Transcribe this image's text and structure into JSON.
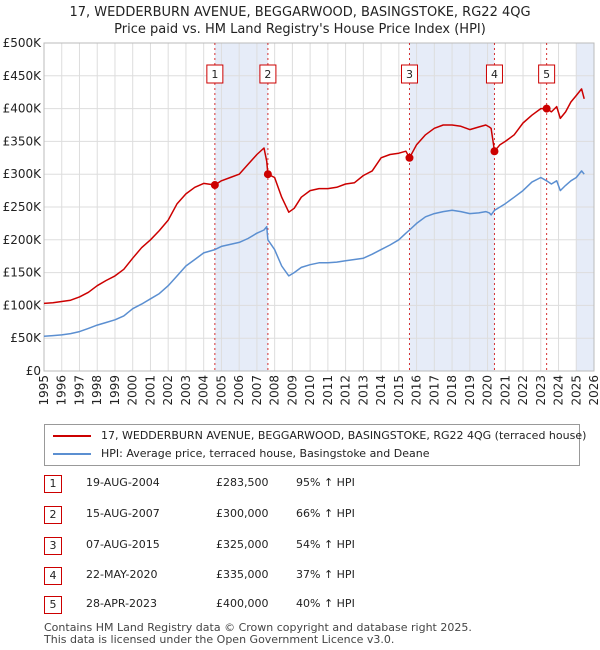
{
  "title_line1": "17, WEDDERBURN AVENUE, BEGGARWOOD, BASINGSTOKE, RG22 4QG",
  "title_line2": "Price paid vs. HM Land Registry's House Price Index (HPI)",
  "colors": {
    "red": "#cc0000",
    "blue": "#5b8fd1",
    "shade": "#dde6f5",
    "grid": "#dddddd"
  },
  "chart_data": {
    "type": "line",
    "xlim": [
      1995,
      2026
    ],
    "ylim": [
      0,
      500000
    ],
    "y_ticks": [
      {
        "value": 0,
        "label": "£0"
      },
      {
        "value": 50000,
        "label": "£50K"
      },
      {
        "value": 100000,
        "label": "£100K"
      },
      {
        "value": 150000,
        "label": "£150K"
      },
      {
        "value": 200000,
        "label": "£200K"
      },
      {
        "value": 250000,
        "label": "£250K"
      },
      {
        "value": 300000,
        "label": "£300K"
      },
      {
        "value": 350000,
        "label": "£350K"
      },
      {
        "value": 400000,
        "label": "£400K"
      },
      {
        "value": 450000,
        "label": "£450K"
      },
      {
        "value": 500000,
        "label": "£500K"
      }
    ],
    "x_ticks": [
      "1995",
      "1996",
      "1997",
      "1998",
      "1999",
      "2000",
      "2001",
      "2002",
      "2003",
      "2004",
      "2005",
      "2006",
      "2007",
      "2008",
      "2009",
      "2010",
      "2011",
      "2012",
      "2013",
      "2014",
      "2015",
      "2016",
      "2017",
      "2018",
      "2019",
      "2020",
      "2021",
      "2022",
      "2023",
      "2024",
      "2025",
      "2026"
    ],
    "shaded_ranges": [
      [
        2004.63,
        2007.62
      ],
      [
        2015.6,
        2020.39
      ],
      [
        2025.0,
        2026.0
      ]
    ],
    "series": [
      {
        "name": "17, WEDDERBURN AVENUE, BEGGARWOOD, BASINGSTOKE, RG22 4QG (terraced house)",
        "color": "#cc0000",
        "x": [
          1995,
          1995.5,
          1996,
          1996.5,
          1997,
          1997.5,
          1998,
          1998.5,
          1999,
          1999.5,
          2000,
          2000.5,
          2001,
          2001.5,
          2002,
          2002.5,
          2003,
          2003.5,
          2004,
          2004.63,
          2005,
          2005.5,
          2006,
          2006.5,
          2007,
          2007.4,
          2007.55,
          2007.62,
          2008,
          2008.4,
          2008.8,
          2009.1,
          2009.5,
          2010,
          2010.5,
          2011,
          2011.5,
          2012,
          2012.5,
          2013,
          2013.5,
          2014,
          2014.5,
          2015,
          2015.4,
          2015.6,
          2016,
          2016.5,
          2017,
          2017.5,
          2018,
          2018.5,
          2019,
          2019.5,
          2019.9,
          2020.1,
          2020.2,
          2020.39,
          2020.7,
          2021,
          2021.5,
          2022,
          2022.5,
          2023,
          2023.33,
          2023.6,
          2023.9,
          2024.1,
          2024.4,
          2024.7,
          2025,
          2025.3,
          2025.45
        ],
        "values": [
          103000,
          104000,
          106000,
          108000,
          113000,
          120000,
          130000,
          138000,
          145000,
          155000,
          172000,
          188000,
          200000,
          214000,
          230000,
          255000,
          270000,
          280000,
          286000,
          283500,
          290000,
          295000,
          300000,
          315000,
          330000,
          340000,
          320000,
          300000,
          295000,
          265000,
          242000,
          248000,
          265000,
          275000,
          278000,
          278000,
          280000,
          285000,
          287000,
          298000,
          305000,
          325000,
          330000,
          332000,
          335000,
          325000,
          345000,
          360000,
          370000,
          375000,
          375000,
          373000,
          368000,
          372000,
          375000,
          372000,
          370000,
          335000,
          345000,
          350000,
          360000,
          378000,
          390000,
          400000,
          400000,
          395000,
          403000,
          385000,
          395000,
          410000,
          420000,
          430000,
          415000
        ]
      },
      {
        "name": "HPI: Average price, terraced house, Basingstoke and Deane",
        "color": "#5b8fd1",
        "x": [
          1995,
          1995.5,
          1996,
          1996.5,
          1997,
          1997.5,
          1998,
          1998.5,
          1999,
          1999.5,
          2000,
          2000.5,
          2001,
          2001.5,
          2002,
          2002.5,
          2003,
          2003.5,
          2004,
          2004.63,
          2005,
          2005.5,
          2006,
          2006.5,
          2007,
          2007.4,
          2007.55,
          2007.62,
          2008,
          2008.4,
          2008.8,
          2009.1,
          2009.5,
          2010,
          2010.5,
          2011,
          2011.5,
          2012,
          2012.5,
          2013,
          2013.5,
          2014,
          2014.5,
          2015,
          2015.4,
          2015.6,
          2016,
          2016.5,
          2017,
          2017.5,
          2018,
          2018.5,
          2019,
          2019.5,
          2019.9,
          2020.1,
          2020.2,
          2020.39,
          2020.7,
          2021,
          2021.5,
          2022,
          2022.5,
          2023,
          2023.33,
          2023.6,
          2023.9,
          2024.1,
          2024.4,
          2024.7,
          2025,
          2025.3,
          2025.45
        ],
        "values": [
          53000,
          54000,
          55000,
          57000,
          60000,
          65000,
          70000,
          74000,
          78000,
          84000,
          95000,
          102000,
          110000,
          118000,
          130000,
          145000,
          160000,
          170000,
          180000,
          185000,
          190000,
          193000,
          196000,
          202000,
          210000,
          215000,
          220000,
          200000,
          185000,
          160000,
          145000,
          150000,
          158000,
          162000,
          165000,
          165000,
          166000,
          168000,
          170000,
          172000,
          178000,
          185000,
          192000,
          200000,
          210000,
          215000,
          225000,
          235000,
          240000,
          243000,
          245000,
          243000,
          240000,
          241000,
          243000,
          241000,
          238000,
          245000,
          250000,
          255000,
          265000,
          275000,
          288000,
          295000,
          290000,
          285000,
          290000,
          275000,
          283000,
          290000,
          295000,
          305000,
          300000
        ]
      }
    ],
    "markers": [
      {
        "label": "1",
        "x": 2004.63,
        "y": 283500
      },
      {
        "label": "2",
        "x": 2007.62,
        "y": 300000
      },
      {
        "label": "3",
        "x": 2015.6,
        "y": 325000
      },
      {
        "label": "4",
        "x": 2020.39,
        "y": 335000
      },
      {
        "label": "5",
        "x": 2023.33,
        "y": 400000
      }
    ]
  },
  "legend": {
    "red_label": "17, WEDDERBURN AVENUE, BEGGARWOOD, BASINGSTOKE, RG22 4QG (terraced house)",
    "blue_label": "HPI: Average price, terraced house, Basingstoke and Deane"
  },
  "transactions": [
    {
      "num": "1",
      "date": "19-AUG-2004",
      "price": "£283,500",
      "hpi": "95% ↑ HPI"
    },
    {
      "num": "2",
      "date": "15-AUG-2007",
      "price": "£300,000",
      "hpi": "66% ↑ HPI"
    },
    {
      "num": "3",
      "date": "07-AUG-2015",
      "price": "£325,000",
      "hpi": "54% ↑ HPI"
    },
    {
      "num": "4",
      "date": "22-MAY-2020",
      "price": "£335,000",
      "hpi": "37% ↑ HPI"
    },
    {
      "num": "5",
      "date": "28-APR-2023",
      "price": "£400,000",
      "hpi": "40% ↑ HPI"
    }
  ],
  "footer_line1": "Contains HM Land Registry data © Crown copyright and database right 2025.",
  "footer_line2": "This data is licensed under the Open Government Licence v3.0."
}
